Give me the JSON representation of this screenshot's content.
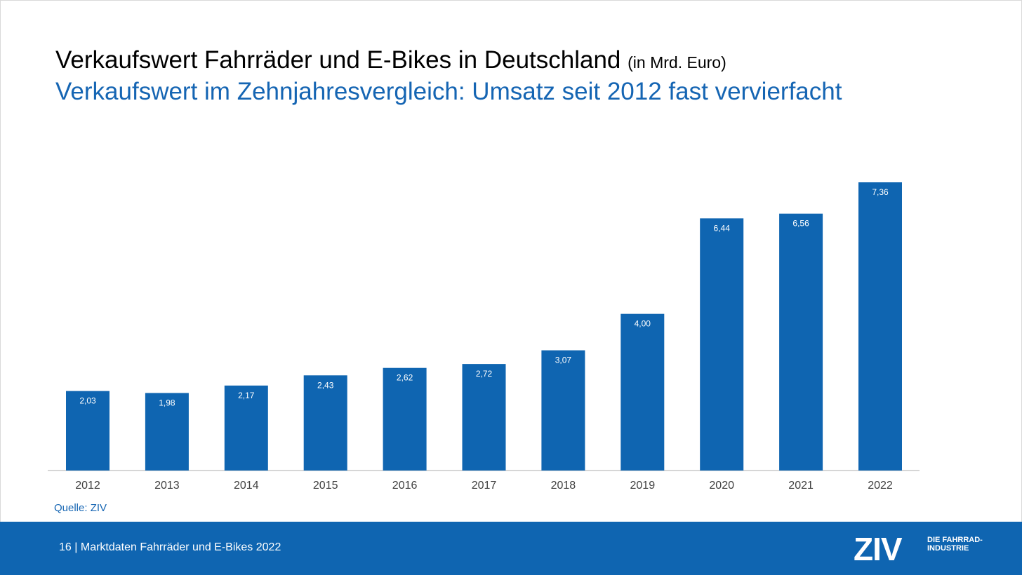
{
  "slide": {
    "title": "Verkaufswert Fahrräder und E-Bikes in Deutschland",
    "title_unit": "(in Mrd. Euro)",
    "subtitle": "Verkaufswert im Zehnjahresvergleich: Umsatz seit 2012 fast vervierfacht",
    "source": "Quelle: ZIV"
  },
  "footer": {
    "page_number": "16",
    "separator": "|",
    "text": "Marktdaten Fahrräder und E-Bikes 2022",
    "logo_mark": "ZIV",
    "logo_tagline": "DIE FAHRRAD- INDUSTRIE"
  },
  "colors": {
    "accent": "#1565b3",
    "bar": "#0f65b1",
    "footer": "#0f65b1",
    "axis": "#c8c8c8"
  },
  "chart_data": {
    "type": "bar",
    "title": "Verkaufswert Fahrräder und E-Bikes in Deutschland (in Mrd. Euro)",
    "xlabel": "",
    "ylabel": "",
    "categories": [
      "2012",
      "2013",
      "2014",
      "2015",
      "2016",
      "2017",
      "2018",
      "2019",
      "2020",
      "2021",
      "2022"
    ],
    "values": [
      2.03,
      1.98,
      2.17,
      2.43,
      2.62,
      2.72,
      3.07,
      4.0,
      6.44,
      6.56,
      7.36
    ],
    "value_labels": [
      "2,03",
      "1,98",
      "2,17",
      "2,43",
      "2,62",
      "2,72",
      "3,07",
      "4,00",
      "6,44",
      "6,56",
      "7,36"
    ],
    "ylim": [
      0,
      7.36
    ],
    "grid": false,
    "legend": "none"
  }
}
